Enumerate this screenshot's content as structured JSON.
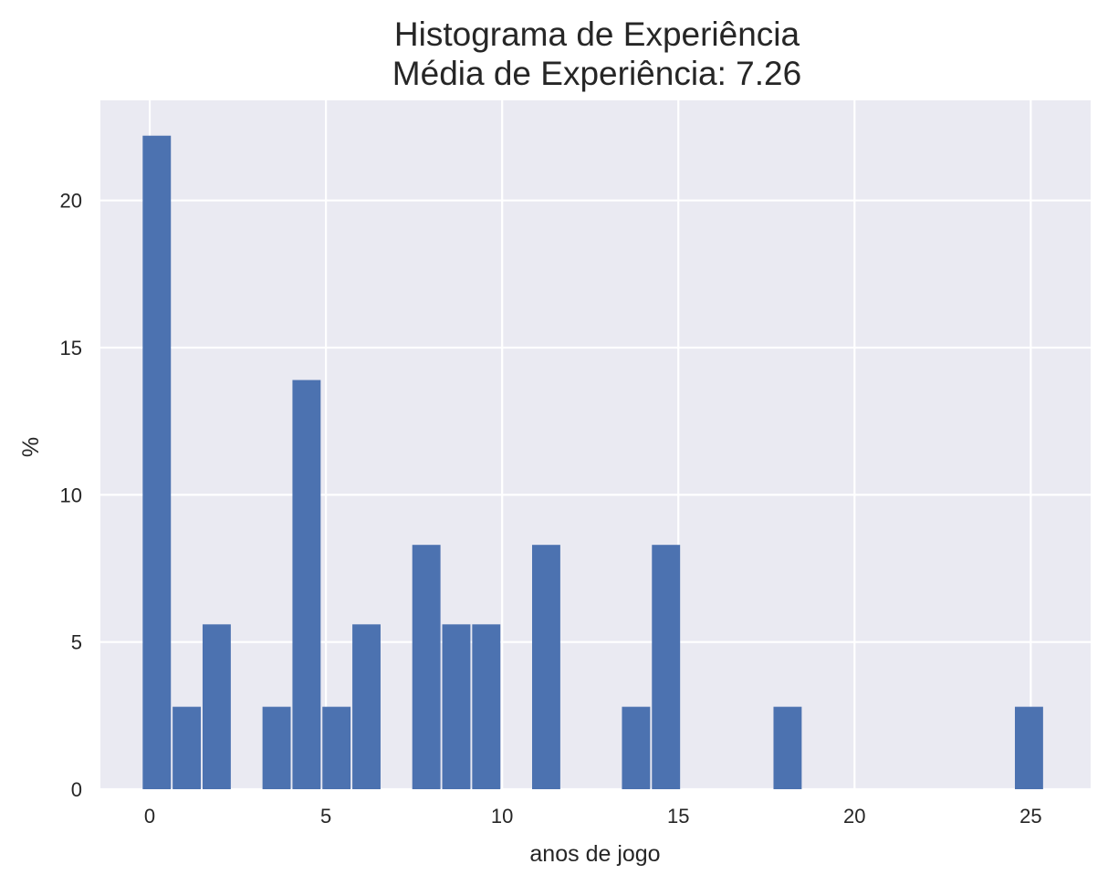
{
  "chart_data": {
    "type": "bar",
    "title": "Histograma de Experiência",
    "subtitle": "Média de Experiência: 7.26",
    "xlabel": "anos de jogo",
    "ylabel": "%",
    "xlim": [
      -1.4,
      26.7
    ],
    "ylim": [
      0,
      23.4
    ],
    "xticks": [
      0,
      5,
      10,
      15,
      20,
      25
    ],
    "yticks": [
      0,
      5,
      10,
      15,
      20
    ],
    "grid": true,
    "bar_color": "#4c72b0",
    "plot_background": "#eaeaf2",
    "bins": [
      {
        "x0": -0.2,
        "x1": 0.6,
        "value": 22.2
      },
      {
        "x0": 0.65,
        "x1": 1.45,
        "value": 2.8
      },
      {
        "x0": 1.5,
        "x1": 2.3,
        "value": 5.6
      },
      {
        "x0": 3.2,
        "x1": 4.0,
        "value": 2.8
      },
      {
        "x0": 4.05,
        "x1": 4.85,
        "value": 13.9
      },
      {
        "x0": 4.9,
        "x1": 5.7,
        "value": 2.8
      },
      {
        "x0": 5.75,
        "x1": 6.55,
        "value": 5.6
      },
      {
        "x0": 7.45,
        "x1": 8.25,
        "value": 8.3
      },
      {
        "x0": 8.3,
        "x1": 9.1,
        "value": 5.6
      },
      {
        "x0": 9.15,
        "x1": 9.95,
        "value": 5.6
      },
      {
        "x0": 10.85,
        "x1": 11.65,
        "value": 8.3
      },
      {
        "x0": 13.4,
        "x1": 14.2,
        "value": 2.8
      },
      {
        "x0": 14.25,
        "x1": 15.05,
        "value": 8.3
      },
      {
        "x0": 17.7,
        "x1": 18.5,
        "value": 2.8
      },
      {
        "x0": 24.55,
        "x1": 25.35,
        "value": 2.8
      }
    ]
  }
}
